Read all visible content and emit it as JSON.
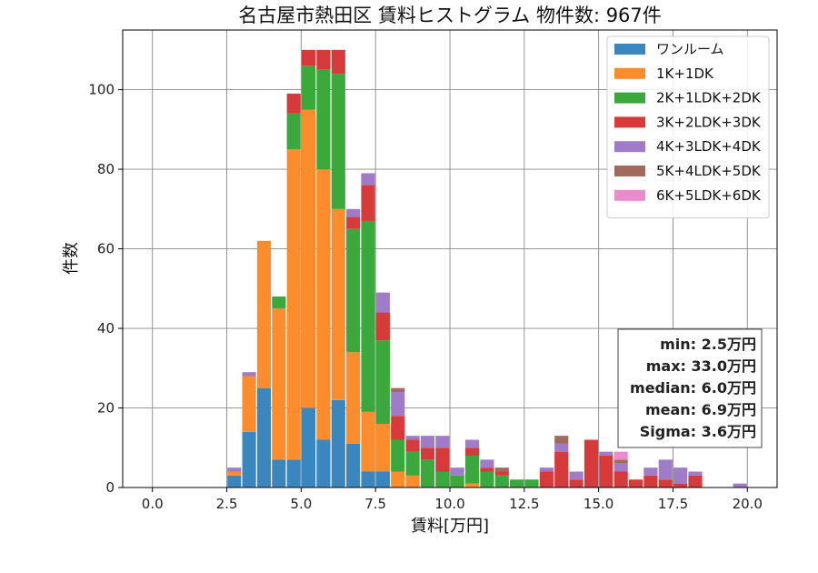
{
  "chart_data": {
    "type": "bar",
    "stacked": true,
    "title": "名古屋市熱田区 賃料ヒストグラム 物件数: 967件",
    "xlabel": "賃料[万円]",
    "ylabel": "件数",
    "xlim": [
      -1.0,
      21.0
    ],
    "ylim": [
      0,
      115
    ],
    "x_ticks": [
      "0.0",
      "2.5",
      "5.0",
      "7.5",
      "10.0",
      "12.5",
      "15.0",
      "17.5",
      "20.0"
    ],
    "y_ticks": [
      "0",
      "20",
      "40",
      "60",
      "80",
      "100"
    ],
    "grid": true,
    "legend_position": "top-right",
    "bin_width": 0.5,
    "x": [
      2.5,
      3.0,
      3.5,
      4.0,
      4.5,
      5.0,
      5.5,
      6.0,
      6.5,
      7.0,
      7.5,
      8.0,
      8.5,
      9.0,
      9.5,
      10.0,
      10.5,
      11.0,
      11.5,
      12.0,
      12.5,
      13.0,
      13.5,
      14.0,
      14.5,
      15.0,
      15.5,
      16.0,
      16.5,
      17.0,
      17.5,
      18.0,
      18.5,
      19.0,
      19.5
    ],
    "series": [
      {
        "name": "ワンルーム",
        "color": "#3a87c0",
        "values": [
          3,
          14,
          25,
          7,
          7,
          20,
          12,
          22,
          11,
          4,
          4,
          0,
          0,
          0,
          0,
          0,
          0,
          0,
          0,
          0,
          0,
          0,
          0,
          0,
          0,
          0,
          0,
          0,
          0,
          0,
          0,
          0,
          0,
          0,
          0
        ]
      },
      {
        "name": "1K+1DK",
        "color": "#fd8c2c",
        "values": [
          1,
          14,
          37,
          38,
          78,
          75,
          68,
          48,
          23,
          15,
          12,
          4,
          3,
          0,
          0,
          0,
          1,
          0,
          0,
          0,
          0,
          0,
          0,
          0,
          0,
          0,
          0,
          0,
          0,
          0,
          0,
          0,
          0,
          0,
          0
        ]
      },
      {
        "name": "2K+1LDK+2DK",
        "color": "#3aa83a",
        "values": [
          0,
          0,
          0,
          3,
          9,
          11,
          25,
          34,
          31,
          48,
          21,
          8,
          6,
          7,
          4,
          3,
          7,
          4,
          3,
          2,
          2,
          0,
          0,
          0,
          0,
          0,
          0,
          0,
          0,
          0,
          0,
          0,
          0,
          0,
          0
        ]
      },
      {
        "name": "3K+2LDK+3DK",
        "color": "#d63a3a",
        "values": [
          0,
          0,
          0,
          0,
          5,
          4,
          5,
          6,
          3,
          9,
          7,
          6,
          3,
          3,
          6,
          0,
          2,
          1,
          1,
          0,
          0,
          4,
          9,
          2,
          12,
          8,
          4,
          2,
          3,
          2,
          1,
          3,
          0,
          0,
          0
        ]
      },
      {
        "name": "4K+3LDK+4DK",
        "color": "#a07cc8",
        "values": [
          1,
          1,
          0,
          0,
          0,
          0,
          0,
          0,
          2,
          3,
          5,
          6,
          1,
          3,
          3,
          2,
          2,
          2,
          0,
          0,
          0,
          1,
          2,
          2,
          0,
          1,
          2,
          0,
          2,
          5,
          4,
          1,
          0,
          0,
          1
        ]
      },
      {
        "name": "5K+4LDK+5DK",
        "color": "#a06b5c",
        "values": [
          0,
          0,
          0,
          0,
          0,
          0,
          0,
          0,
          0,
          0,
          0,
          1,
          0,
          0,
          0,
          0,
          0,
          0,
          1,
          0,
          0,
          0,
          2,
          0,
          0,
          0,
          1,
          0,
          0,
          0,
          0,
          0,
          0,
          0,
          0
        ]
      },
      {
        "name": "6K+5LDK+6DK",
        "color": "#ea8bcd",
        "values": [
          0,
          0,
          0,
          0,
          0,
          0,
          0,
          0,
          0,
          0,
          0,
          0,
          0,
          0,
          0,
          0,
          0,
          0,
          0,
          0,
          0,
          0,
          0,
          0,
          0,
          0,
          2,
          0,
          0,
          0,
          0,
          0,
          0,
          0,
          0
        ]
      }
    ],
    "stats": [
      "min: 2.5万円",
      "max: 33.0万円",
      "median: 6.0万円",
      "mean: 6.9万円",
      "Sigma: 3.6万円"
    ]
  }
}
